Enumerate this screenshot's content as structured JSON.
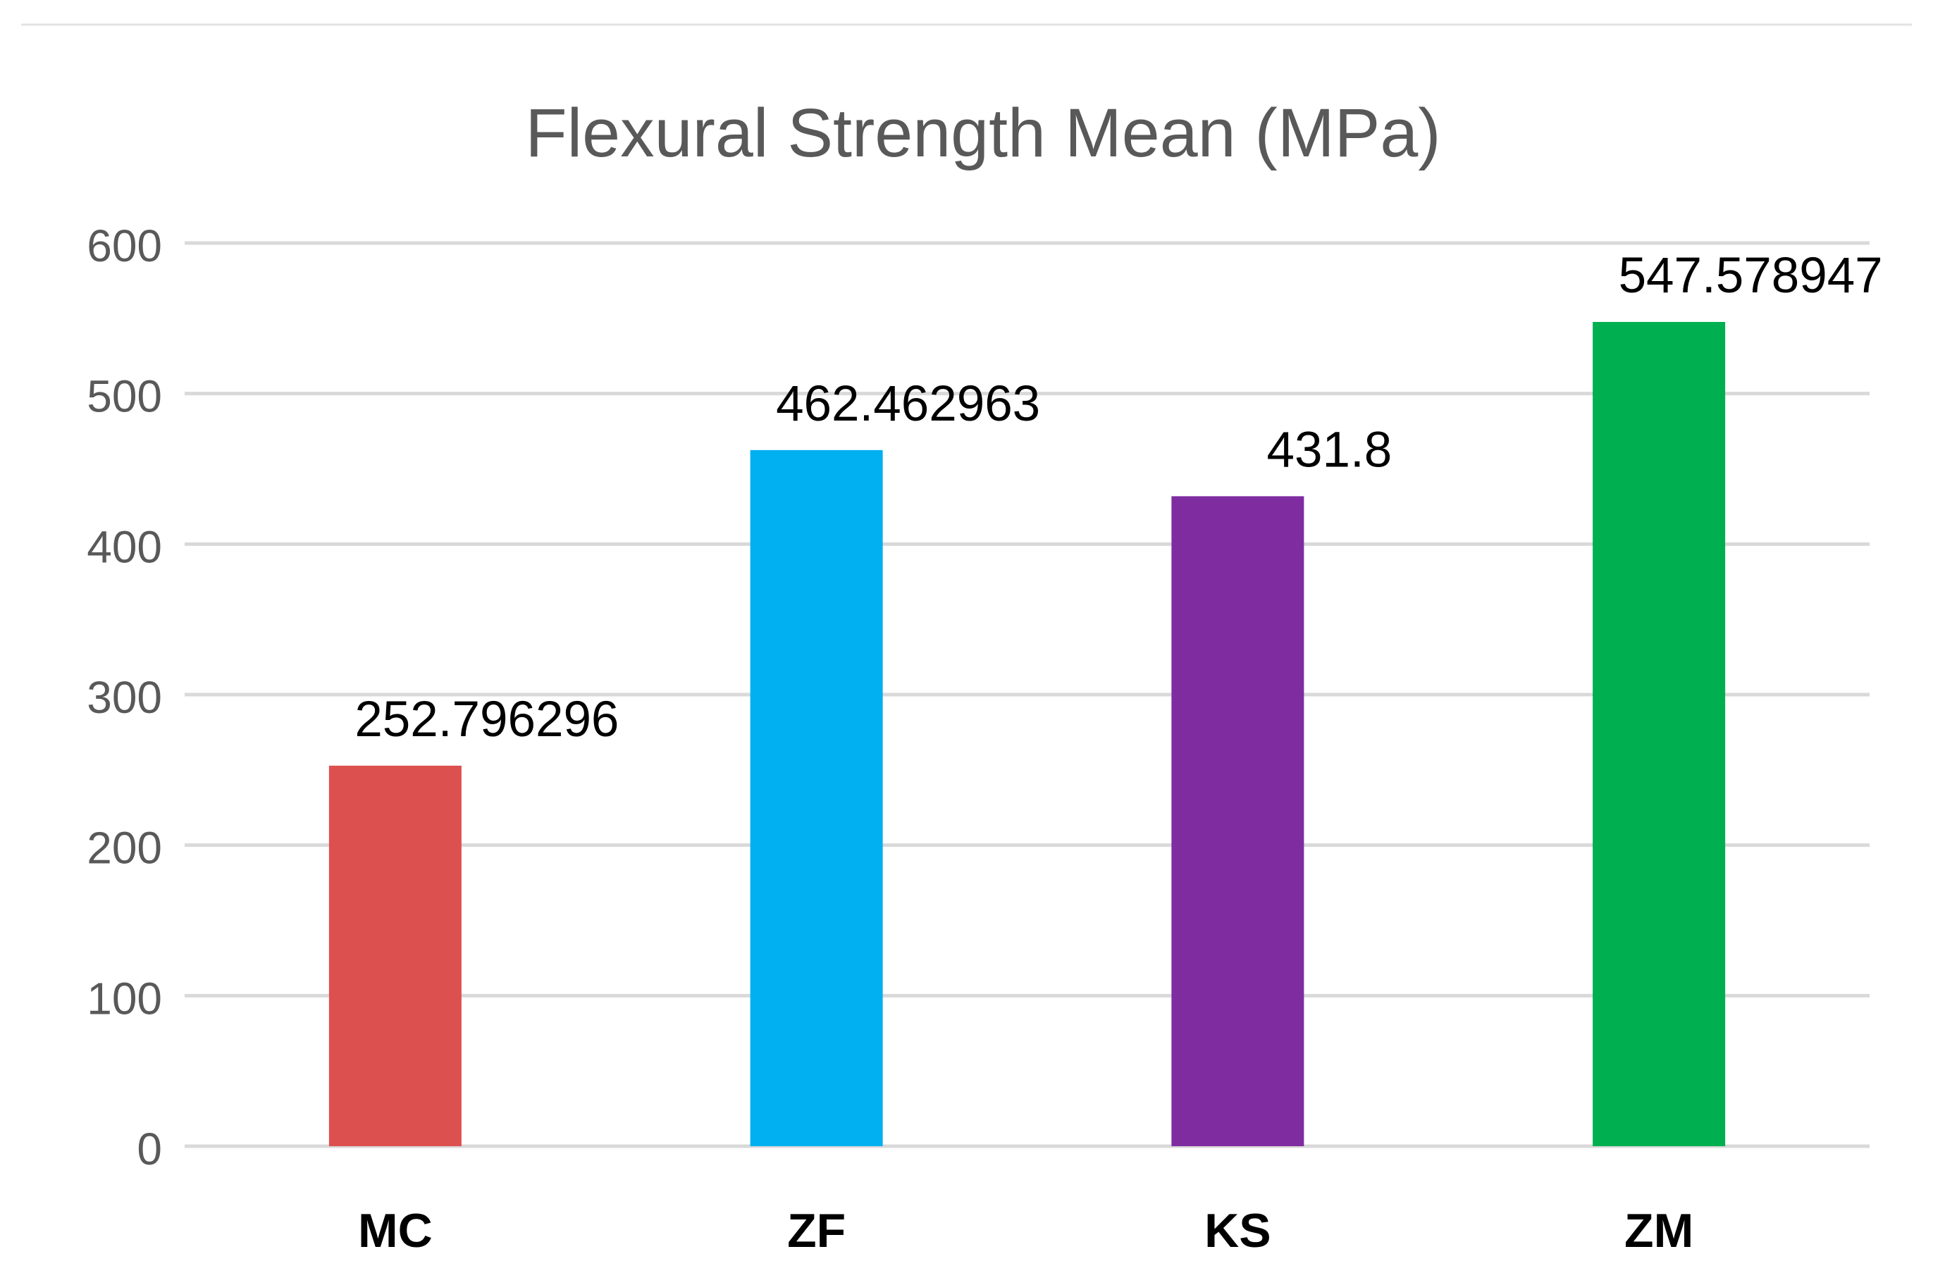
{
  "chart_data": {
    "type": "bar",
    "title": "Flexural Strength Mean (MPa)",
    "xlabel": "",
    "ylabel": "",
    "categories": [
      "MC",
      "ZF",
      "KS",
      "ZM"
    ],
    "values": [
      252.796296,
      462.462963,
      431.8,
      547.578947
    ],
    "value_labels": [
      "252.796296",
      "462.462963",
      "431.8",
      "547.578947"
    ],
    "colors": [
      "#dc504f",
      "#00b0f0",
      "#7f2ca1",
      "#00b050"
    ],
    "ylim": [
      0,
      600
    ],
    "yticks": [
      0,
      100,
      200,
      300,
      400,
      500,
      600
    ],
    "grid": true,
    "legend": "none"
  }
}
